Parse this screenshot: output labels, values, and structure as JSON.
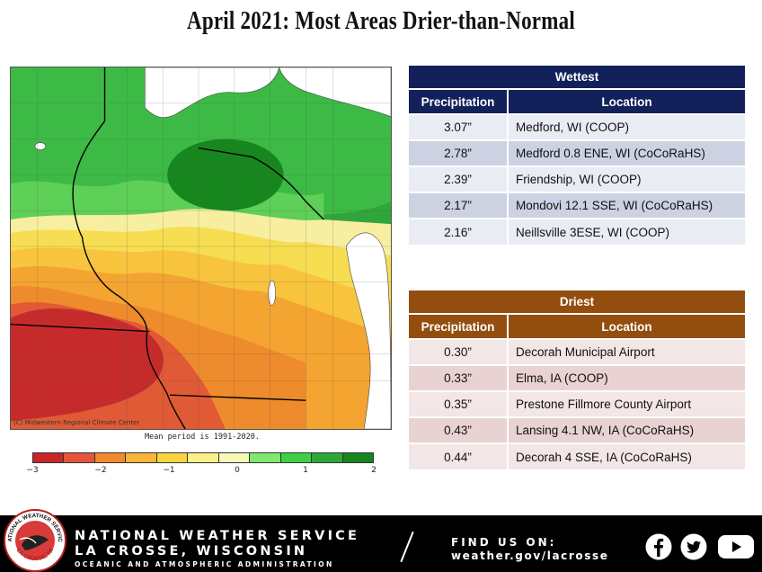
{
  "title": "April 2021:  Most Areas Drier-than-Normal",
  "map": {
    "credit": "(C) Midwestern Regional Climate Center",
    "mean_period": "Mean period is 1991-2020.",
    "colorbar_labels": [
      "−3",
      "−2",
      "−1",
      "0",
      "1",
      "2"
    ],
    "colorbar_colors": [
      "#c8262b",
      "#e4553a",
      "#f2892c",
      "#f9b53a",
      "#f8d43e",
      "#faf08a",
      "#f7f7b8",
      "#7ee86f",
      "#3fcf45",
      "#2da838",
      "#15861e"
    ]
  },
  "wettest": {
    "caption": "Wettest",
    "col_precip": "Precipitation",
    "col_location": "Location",
    "rows": [
      {
        "precip": "3.07”",
        "location": "Medford, WI (COOP)"
      },
      {
        "precip": "2.78”",
        "location": "Medford 0.8 ENE, WI (CoCoRaHS)"
      },
      {
        "precip": "2.39”",
        "location": "Friendship, WI (COOP)"
      },
      {
        "precip": "2.17”",
        "location": "Mondovi 12.1 SSE, WI (CoCoRaHS)"
      },
      {
        "precip": "2.16”",
        "location": "Neillsville 3ESE, WI (COOP)"
      }
    ]
  },
  "driest": {
    "caption": "Driest",
    "col_precip": "Precipitation",
    "col_location": "Location",
    "rows": [
      {
        "precip": "0.30”",
        "location": "Decorah Municipal Airport"
      },
      {
        "precip": "0.33”",
        "location": "Elma, IA (COOP)"
      },
      {
        "precip": "0.35”",
        "location": "Prestone Fillmore County Airport"
      },
      {
        "precip": "0.43”",
        "location": "Lansing 4.1 NW, IA (CoCoRaHS)"
      },
      {
        "precip": "0.44”",
        "location": "Decorah 4 SSE, IA (CoCoRaHS)"
      }
    ]
  },
  "footer": {
    "line1": "NATIONAL WEATHER SERVICE",
    "line2": "LA CROSSE, WISCONSIN",
    "line3": "OCEANIC AND ATMOSPHERIC ADMINISTRATION",
    "find_us": "FIND US ON:",
    "url": "weather.gov/lacrosse",
    "logo_text": "NATIONAL WEATHER SERVICE",
    "logo_city": "LA CROSSE, WI",
    "social": [
      "facebook-icon",
      "twitter-icon",
      "youtube-icon"
    ]
  }
}
